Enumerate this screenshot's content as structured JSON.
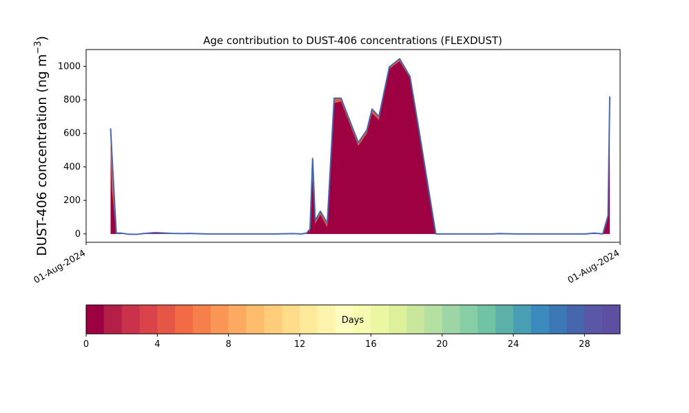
{
  "chart_data": {
    "type": "area",
    "title": "Age contribution to DUST-406 concentrations (FLEXDUST)",
    "ylabel_main": "DUST-406 concentration (ng m",
    "ylabel_sup": "−3",
    "ylabel_close": ")",
    "xlabel": "",
    "x_tick_labels": [
      "01-Aug-2024",
      "01-Aug-2024"
    ],
    "x_range": [
      0,
      31
    ],
    "ylim": [
      -50,
      1100
    ],
    "y_ticks": [
      0,
      200,
      400,
      600,
      800,
      1000
    ],
    "grid": false,
    "total_series": {
      "name": "",
      "x": [
        1.42,
        1.5,
        1.75,
        2.0,
        2.5,
        3.0,
        3.3,
        4.0,
        5.0,
        5.5,
        6.0,
        7.0,
        8.0,
        9.0,
        10.0,
        11.0,
        12.0,
        12.5,
        12.8,
        13.0,
        13.15,
        13.3,
        13.6,
        14.0,
        14.4,
        14.8,
        15.8,
        16.3,
        16.6,
        17.0,
        17.6,
        18.2,
        18.8,
        19.3,
        20.3,
        20.8,
        21.4,
        22.0,
        22.8,
        23.2,
        23.5,
        24.0,
        25.0,
        26.0,
        27.0,
        28.0,
        28.5,
        29.0,
        29.5,
        30.0,
        30.3,
        30.4
      ],
      "values": [
        630,
        470,
        5,
        5,
        -2,
        -2,
        2,
        8,
        3,
        2,
        3,
        0,
        0,
        0,
        0,
        0,
        2,
        0,
        5,
        30,
        450,
        80,
        135,
        65,
        810,
        810,
        545,
        620,
        745,
        700,
        995,
        1045,
        940,
        635,
        0,
        0,
        0,
        0,
        0,
        0,
        0,
        2,
        0,
        0,
        0,
        0,
        0,
        0,
        5,
        0,
        110,
        820
      ]
    },
    "fresh_series": {
      "name": "",
      "values": [
        470,
        260,
        3,
        3,
        -2,
        -2,
        1,
        6,
        2,
        1,
        2,
        0,
        0,
        0,
        0,
        0,
        1,
        0,
        3,
        20,
        320,
        60,
        115,
        40,
        780,
        790,
        525,
        600,
        720,
        680,
        985,
        1030,
        930,
        625,
        0,
        0,
        0,
        0,
        0,
        0,
        0,
        1,
        0,
        0,
        0,
        0,
        0,
        0,
        3,
        0,
        95,
        650
      ]
    },
    "colorbar": {
      "label": "Days",
      "range": [
        0,
        30
      ],
      "ticks": [
        0,
        4,
        8,
        12,
        16,
        20,
        24,
        28
      ],
      "colors": [
        "#9e0142",
        "#b41f48",
        "#c9324a",
        "#da4349",
        "#e65647",
        "#f16b45",
        "#f67f4b",
        "#f99555",
        "#fca961",
        "#fdbd6c",
        "#fecd7a",
        "#fedc89",
        "#feea9a",
        "#fdf5ac",
        "#fefcbe",
        "#f6fbb1",
        "#ecf7a2",
        "#ddf19a",
        "#c9e89e",
        "#b4e0a2",
        "#9dd6a4",
        "#86cea5",
        "#70c3a5",
        "#5bb1aa",
        "#489eb3",
        "#3a8bbb",
        "#3d78b6",
        "#4566ad",
        "#5957a6",
        "#5e4fa2"
      ]
    },
    "colors": {
      "fresh": "#9e0142",
      "aged_band": "#e06040",
      "top_line": "#4566ad"
    }
  }
}
